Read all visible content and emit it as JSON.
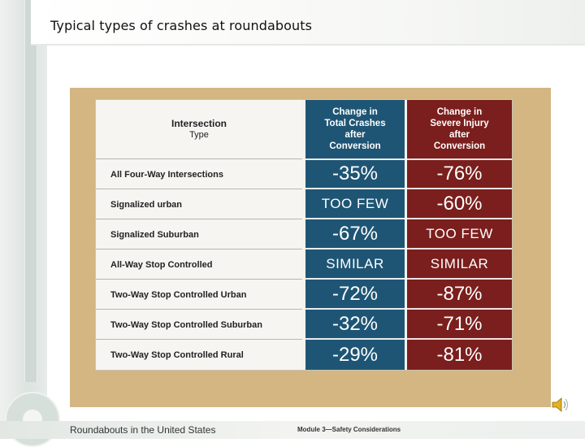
{
  "slide": {
    "title": "Typical types of crashes at roundabouts"
  },
  "table": {
    "header": {
      "type_line1": "Intersection",
      "type_line2": "Type",
      "total": "Change in\nTotal Crashes\nafter\nConversion",
      "severe": "Change in\nSevere Injury\nafter\nConversion"
    },
    "rows": [
      {
        "type": "All Four-Way Intersections",
        "total": "-35%",
        "severe": "-76%"
      },
      {
        "type": "Signalized urban",
        "total": "TOO FEW",
        "severe": "-60%"
      },
      {
        "type": "Signalized Suburban",
        "total": "-67%",
        "severe": "TOO FEW"
      },
      {
        "type": "All-Way Stop Controlled",
        "total": "SIMILAR",
        "severe": "SIMILAR"
      },
      {
        "type": "Two-Way Stop Controlled Urban",
        "total": "-72%",
        "severe": "-87%"
      },
      {
        "type": "Two-Way Stop Controlled Suburban",
        "total": "-32%",
        "severe": "-71%"
      },
      {
        "type": "Two-Way Stop Controlled Rural",
        "total": "-29%",
        "severe": "-81%"
      }
    ]
  },
  "footer": {
    "left": "Roundabouts in the United States",
    "middle": "Module 3—Safety Considerations"
  },
  "colors": {
    "total_column": "#1f5574",
    "severe_column": "#7a1f1d",
    "panel": "#d3b682"
  }
}
